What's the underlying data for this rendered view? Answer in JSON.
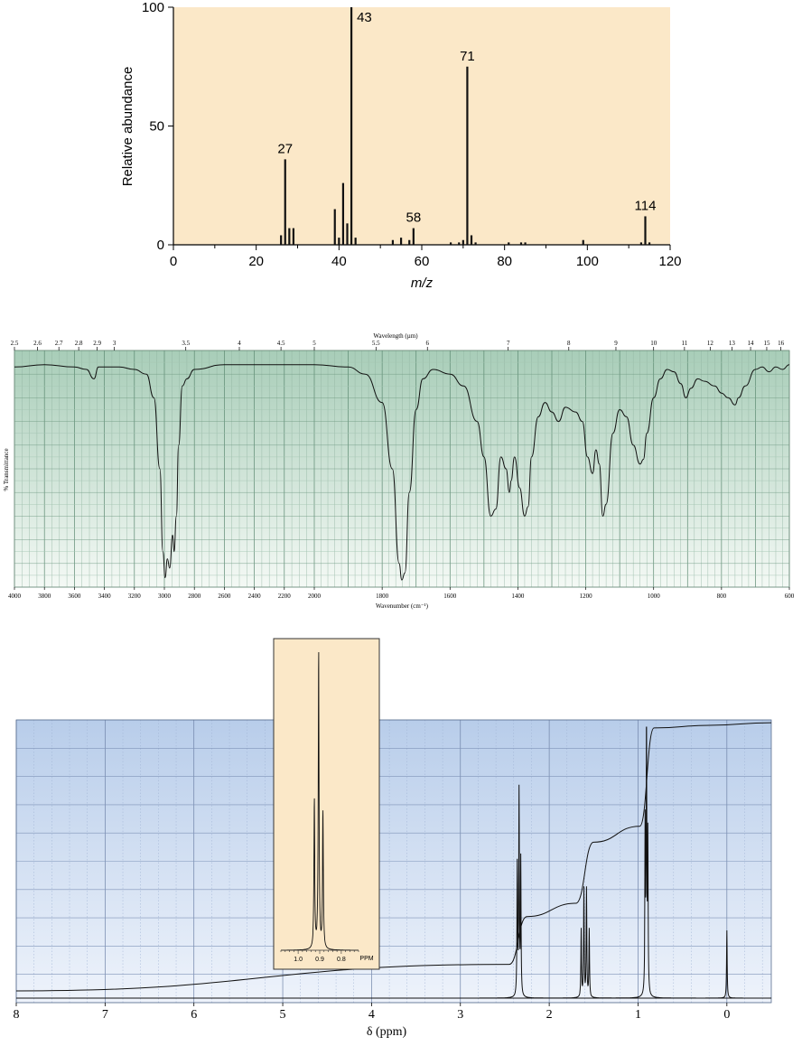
{
  "colors": {
    "ms_background": "#fbe8c8",
    "ir_background_top": "#a8cdb8",
    "ir_background_bottom": "#f4f9f5",
    "nmr_background_top": "#b8cdea",
    "nmr_background_bottom": "#eef3fb",
    "inset_background": "#fbe8c8",
    "trace": "#111111"
  },
  "chart_data": [
    {
      "id": "mass-spectrum",
      "type": "bar",
      "xlabel": "m/z",
      "ylabel": "Relative abundance",
      "xlim": [
        0,
        120
      ],
      "ylim": [
        0,
        100
      ],
      "x_ticks": [
        "0",
        "20",
        "40",
        "60",
        "80",
        "100",
        "120"
      ],
      "y_ticks": [
        "0",
        "50",
        "100"
      ],
      "peaks": [
        {
          "mz": 26,
          "abundance": 4
        },
        {
          "mz": 27,
          "abundance": 36,
          "label": "27"
        },
        {
          "mz": 28,
          "abundance": 7
        },
        {
          "mz": 29,
          "abundance": 7
        },
        {
          "mz": 39,
          "abundance": 15
        },
        {
          "mz": 40,
          "abundance": 3
        },
        {
          "mz": 41,
          "abundance": 26
        },
        {
          "mz": 42,
          "abundance": 9
        },
        {
          "mz": 43,
          "abundance": 100,
          "label": "43"
        },
        {
          "mz": 44,
          "abundance": 3
        },
        {
          "mz": 53,
          "abundance": 2
        },
        {
          "mz": 55,
          "abundance": 3
        },
        {
          "mz": 57,
          "abundance": 2
        },
        {
          "mz": 58,
          "abundance": 7,
          "label": "58"
        },
        {
          "mz": 67,
          "abundance": 1
        },
        {
          "mz": 69,
          "abundance": 1
        },
        {
          "mz": 70,
          "abundance": 2
        },
        {
          "mz": 71,
          "abundance": 75,
          "label": "71"
        },
        {
          "mz": 72,
          "abundance": 4
        },
        {
          "mz": 73,
          "abundance": 1
        },
        {
          "mz": 81,
          "abundance": 1
        },
        {
          "mz": 84,
          "abundance": 1
        },
        {
          "mz": 85,
          "abundance": 1
        },
        {
          "mz": 99,
          "abundance": 2
        },
        {
          "mz": 113,
          "abundance": 1
        },
        {
          "mz": 114,
          "abundance": 12,
          "label": "114"
        },
        {
          "mz": 115,
          "abundance": 1
        }
      ]
    },
    {
      "id": "ir-spectrum",
      "type": "line",
      "title": "Wavelength (µm)",
      "xlabel": "Wavenumber (cm⁻¹)",
      "ylabel": "% Transmittance",
      "xlim": [
        4000,
        600
      ],
      "ylim": [
        0,
        100
      ],
      "wavelength_ticks": [
        {
          "um": 2.5,
          "label": "2.5"
        },
        {
          "um": 2.6,
          "label": "2.6"
        },
        {
          "um": 2.7,
          "label": "2.7"
        },
        {
          "um": 2.8,
          "label": "2.8"
        },
        {
          "um": 2.9,
          "label": "2.9"
        },
        {
          "um": 3,
          "label": "3"
        },
        {
          "um": 3.5,
          "label": "3.5"
        },
        {
          "um": 4,
          "label": "4"
        },
        {
          "um": 4.5,
          "label": "4.5"
        },
        {
          "um": 5,
          "label": "5"
        },
        {
          "um": 5.5,
          "label": "5.5"
        },
        {
          "um": 6,
          "label": "6"
        },
        {
          "um": 7,
          "label": "7"
        },
        {
          "um": 8,
          "label": "8"
        },
        {
          "um": 9,
          "label": "9"
        },
        {
          "um": 10,
          "label": "10"
        },
        {
          "um": 11,
          "label": "11"
        },
        {
          "um": 12,
          "label": "12"
        },
        {
          "um": 13,
          "label": "13"
        },
        {
          "um": 14,
          "label": "14"
        },
        {
          "um": 15,
          "label": "15"
        },
        {
          "um": 16,
          "label": "16"
        }
      ],
      "wavenumber_ticks": [
        {
          "wn": 4000,
          "label": "4000"
        },
        {
          "wn": 3800,
          "label": "3800"
        },
        {
          "wn": 3600,
          "label": "3600"
        },
        {
          "wn": 3400,
          "label": "3400"
        },
        {
          "wn": 3200,
          "label": "3200"
        },
        {
          "wn": 3000,
          "label": "3000"
        },
        {
          "wn": 2800,
          "label": "2800"
        },
        {
          "wn": 2600,
          "label": "2600"
        },
        {
          "wn": 2400,
          "label": "2400"
        },
        {
          "wn": 2200,
          "label": "2200"
        },
        {
          "wn": 2000,
          "label": "2000"
        },
        {
          "wn": 1800,
          "label": "1800"
        },
        {
          "wn": 1600,
          "label": "1600"
        },
        {
          "wn": 1400,
          "label": "1400"
        },
        {
          "wn": 1200,
          "label": "1200"
        },
        {
          "wn": 1000,
          "label": "1000"
        },
        {
          "wn": 800,
          "label": "800"
        },
        {
          "wn": 600,
          "label": "600"
        }
      ],
      "trace": [
        [
          4000,
          93
        ],
        [
          3800,
          94
        ],
        [
          3600,
          93
        ],
        [
          3520,
          92
        ],
        [
          3470,
          88
        ],
        [
          3440,
          93
        ],
        [
          3300,
          93
        ],
        [
          3200,
          92
        ],
        [
          3120,
          90
        ],
        [
          3070,
          80
        ],
        [
          3030,
          50
        ],
        [
          3010,
          15
        ],
        [
          2995,
          4
        ],
        [
          2980,
          12
        ],
        [
          2965,
          8
        ],
        [
          2945,
          22
        ],
        [
          2935,
          15
        ],
        [
          2920,
          30
        ],
        [
          2905,
          60
        ],
        [
          2880,
          85
        ],
        [
          2850,
          88
        ],
        [
          2800,
          92
        ],
        [
          2600,
          94
        ],
        [
          2400,
          94
        ],
        [
          2200,
          94
        ],
        [
          2000,
          94
        ],
        [
          1900,
          93
        ],
        [
          1850,
          90
        ],
        [
          1800,
          78
        ],
        [
          1770,
          50
        ],
        [
          1750,
          10
        ],
        [
          1742,
          3
        ],
        [
          1733,
          6
        ],
        [
          1720,
          40
        ],
        [
          1700,
          75
        ],
        [
          1680,
          88
        ],
        [
          1650,
          92
        ],
        [
          1600,
          90
        ],
        [
          1560,
          85
        ],
        [
          1520,
          70
        ],
        [
          1500,
          55
        ],
        [
          1480,
          30
        ],
        [
          1465,
          33
        ],
        [
          1450,
          55
        ],
        [
          1435,
          50
        ],
        [
          1425,
          40
        ],
        [
          1420,
          45
        ],
        [
          1410,
          55
        ],
        [
          1395,
          42
        ],
        [
          1380,
          30
        ],
        [
          1370,
          34
        ],
        [
          1360,
          55
        ],
        [
          1340,
          72
        ],
        [
          1320,
          78
        ],
        [
          1300,
          74
        ],
        [
          1280,
          70
        ],
        [
          1260,
          76
        ],
        [
          1230,
          74
        ],
        [
          1210,
          70
        ],
        [
          1195,
          55
        ],
        [
          1180,
          48
        ],
        [
          1170,
          58
        ],
        [
          1160,
          52
        ],
        [
          1150,
          30
        ],
        [
          1140,
          35
        ],
        [
          1120,
          65
        ],
        [
          1100,
          75
        ],
        [
          1080,
          72
        ],
        [
          1060,
          60
        ],
        [
          1040,
          52
        ],
        [
          1030,
          54
        ],
        [
          1020,
          65
        ],
        [
          1000,
          80
        ],
        [
          980,
          88
        ],
        [
          960,
          92
        ],
        [
          940,
          91
        ],
        [
          920,
          86
        ],
        [
          905,
          80
        ],
        [
          890,
          84
        ],
        [
          870,
          88
        ],
        [
          850,
          87
        ],
        [
          820,
          85
        ],
        [
          800,
          82
        ],
        [
          780,
          80
        ],
        [
          760,
          77
        ],
        [
          750,
          80
        ],
        [
          730,
          85
        ],
        [
          700,
          92
        ],
        [
          680,
          93
        ],
        [
          660,
          91
        ],
        [
          640,
          93
        ],
        [
          620,
          92
        ],
        [
          600,
          94
        ]
      ]
    },
    {
      "id": "nmr-spectrum",
      "type": "line",
      "xlabel": "δ (ppm)",
      "xlim": [
        8,
        -0.5
      ],
      "x_ticks": [
        "8",
        "7",
        "6",
        "5",
        "4",
        "3",
        "2",
        "1",
        "0"
      ],
      "peaks": [
        {
          "ppm": 2.36,
          "intensity": 48
        },
        {
          "ppm": 2.34,
          "intensity": 75
        },
        {
          "ppm": 2.32,
          "intensity": 50
        },
        {
          "ppm": 1.64,
          "intensity": 25
        },
        {
          "ppm": 1.61,
          "intensity": 40
        },
        {
          "ppm": 1.58,
          "intensity": 40
        },
        {
          "ppm": 1.55,
          "intensity": 25
        },
        {
          "ppm": 0.92,
          "intensity": 62
        },
        {
          "ppm": 0.905,
          "intensity": 100
        },
        {
          "ppm": 0.89,
          "intensity": 57
        },
        {
          "ppm": 0.0,
          "intensity": 25
        }
      ],
      "integration": [
        {
          "ppm": 8.0,
          "level": 0
        },
        {
          "ppm": 2.45,
          "level": 0.1
        },
        {
          "ppm": 2.25,
          "level": 0.28
        },
        {
          "ppm": 1.7,
          "level": 0.33
        },
        {
          "ppm": 1.5,
          "level": 0.56
        },
        {
          "ppm": 0.98,
          "level": 0.62
        },
        {
          "ppm": 0.82,
          "level": 0.99
        },
        {
          "ppm": 0.2,
          "level": 1.0
        },
        {
          "ppm": -0.5,
          "level": 1.01
        }
      ],
      "inset": {
        "xlim": [
          1.08,
          0.72
        ],
        "x_ticks": [
          "1.0",
          "0.9",
          "0.8"
        ],
        "unit": "PPM",
        "peaks": [
          {
            "ppm": 0.925,
            "intensity": 50
          },
          {
            "ppm": 0.905,
            "intensity": 100
          },
          {
            "ppm": 0.885,
            "intensity": 46
          }
        ]
      }
    }
  ]
}
